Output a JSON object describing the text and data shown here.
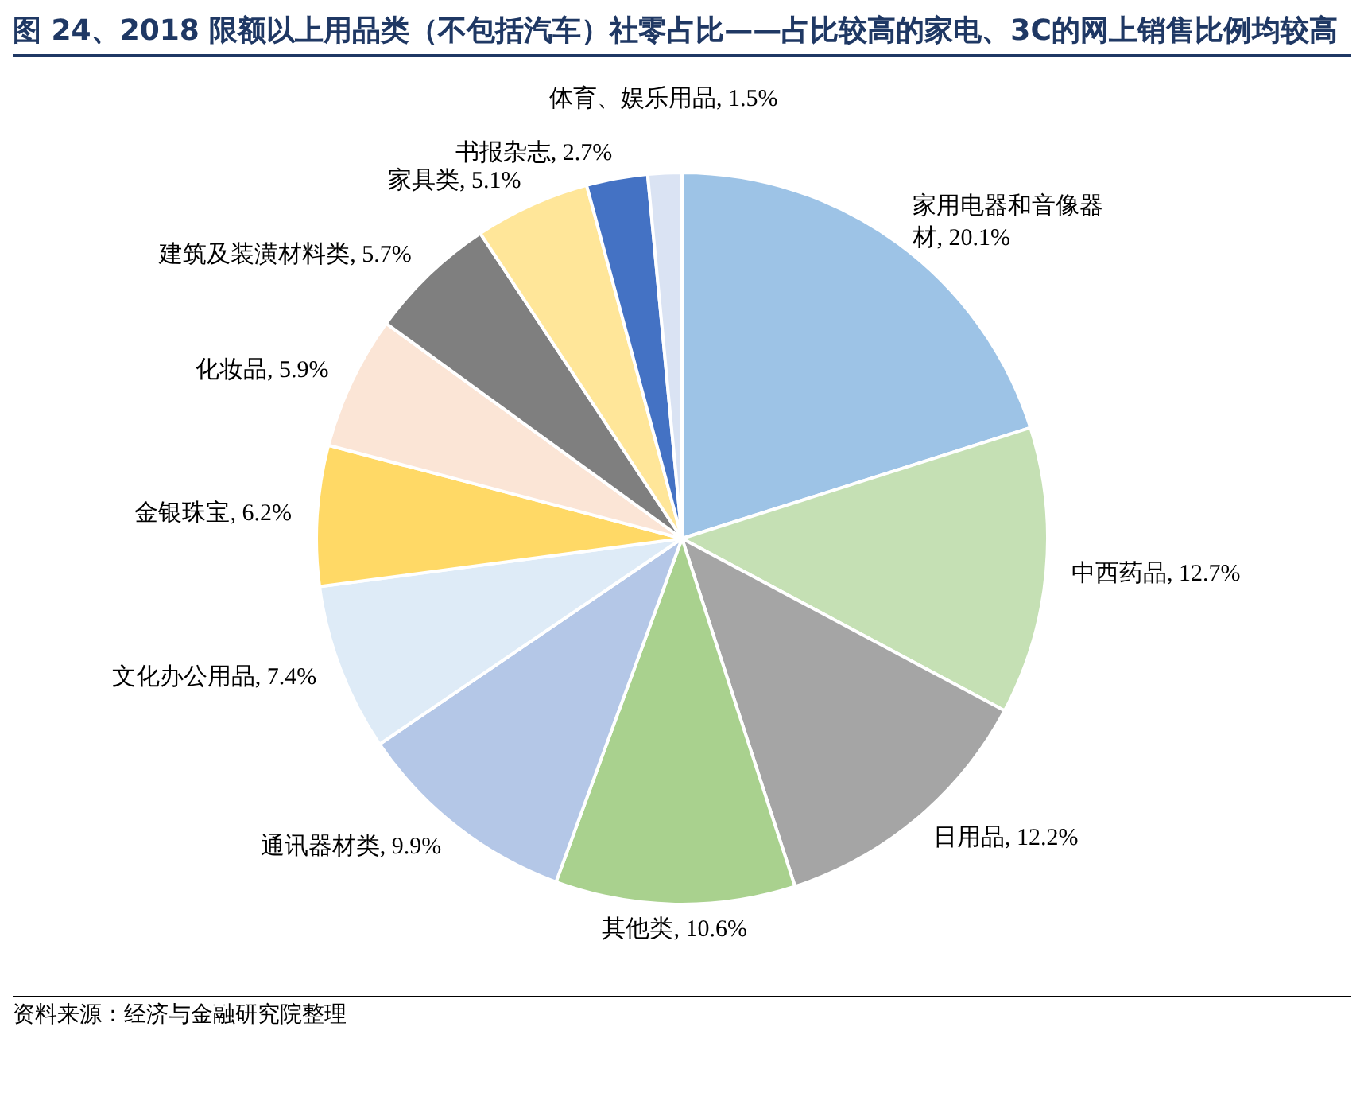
{
  "chart_data": {
    "type": "pie",
    "title": "图 24、2018 限额以上用品类（不包括汽车）社零占比——占比较高的家电、3C的网上销售比例均较高",
    "categories": [
      "家用电器和音像器材",
      "中西药品",
      "日用品",
      "其他类",
      "通讯器材类",
      "文化办公用品",
      "金银珠宝",
      "化妆品",
      "建筑及装潢材料类",
      "家具类",
      "书报杂志",
      "体育、娱乐用品"
    ],
    "values": [
      20.1,
      12.7,
      12.2,
      10.6,
      9.9,
      7.4,
      6.2,
      5.9,
      5.7,
      5.1,
      2.7,
      1.5
    ],
    "value_labels": [
      "20.1%",
      "12.7%",
      "12.2%",
      "10.6%",
      "9.9%",
      "7.4%",
      "6.2%",
      "5.9%",
      "5.7%",
      "5.1%",
      "2.7%",
      "1.5%"
    ],
    "colors": [
      "#9dc3e6",
      "#c5e0b4",
      "#a5a5a5",
      "#a9d18e",
      "#b4c7e7",
      "#deebf7",
      "#ffd966",
      "#fbe5d6",
      "#7f7f7f",
      "#ffe699",
      "#4472c4",
      "#dae3f3"
    ],
    "legend": false,
    "annotations": [
      "资料来源：经济与金融研究院整理"
    ]
  }
}
